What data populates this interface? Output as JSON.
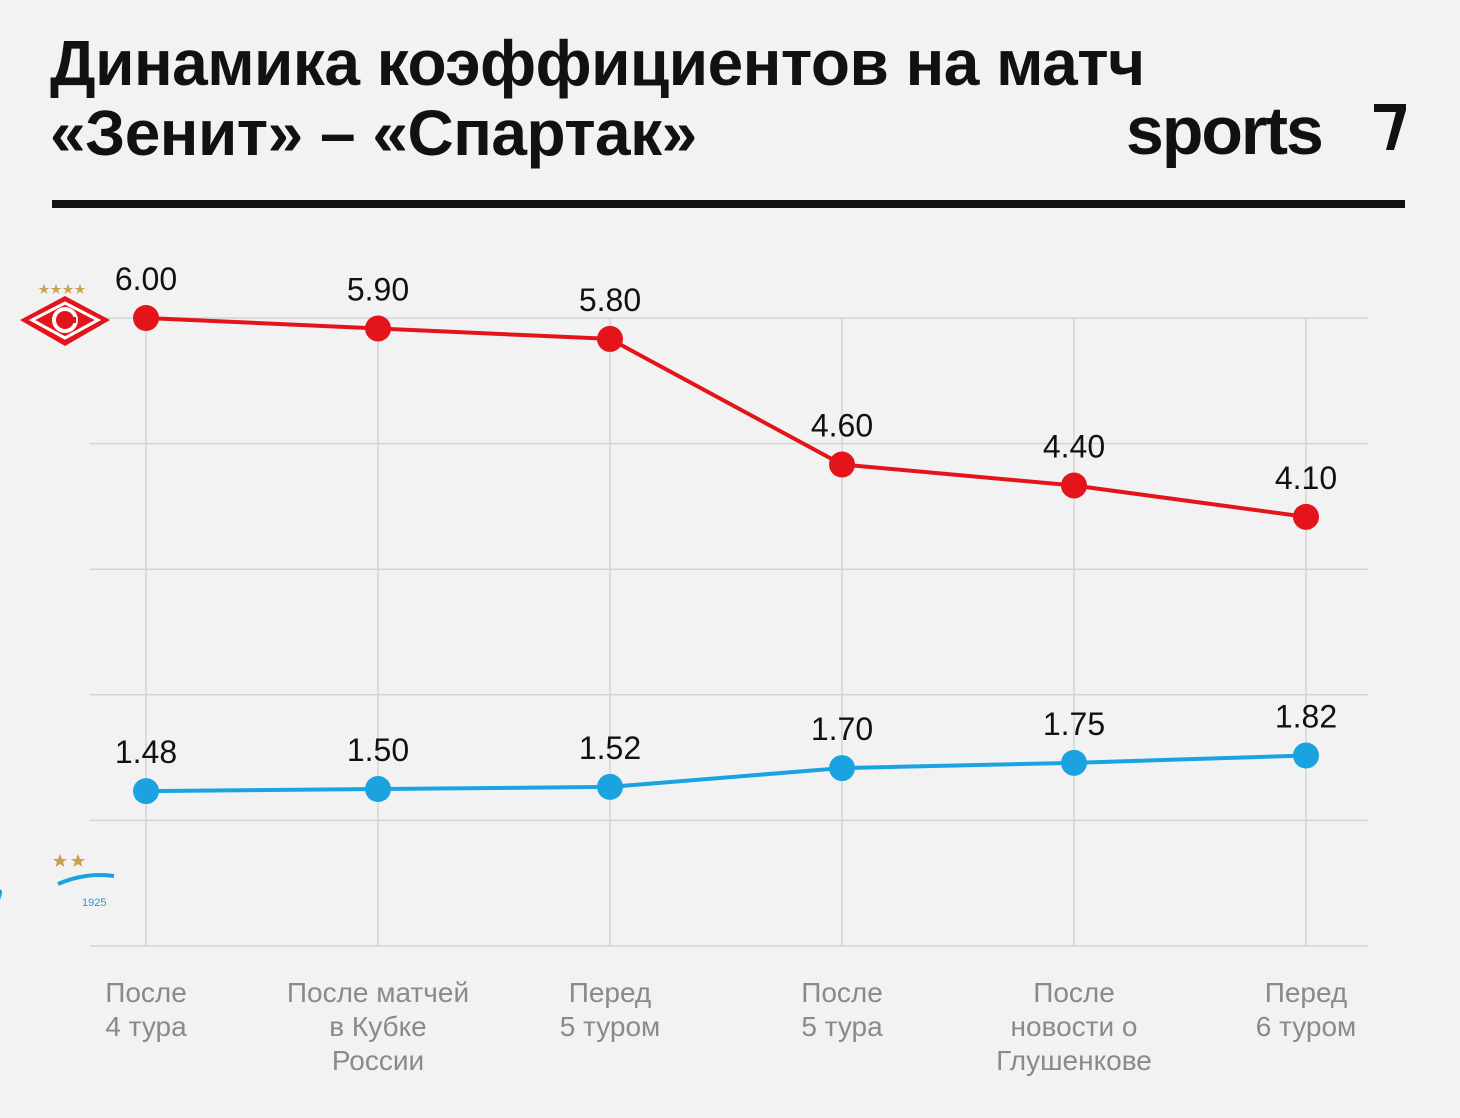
{
  "header": {
    "title_line1": "Динамика коэффициентов на матч",
    "title_line2": "«Зенит» – «Спартак»",
    "brand": "sports"
  },
  "colors": {
    "spartak": "#e3151b",
    "zenit": "#1aa3e0",
    "grid": "#d4d4d4"
  },
  "icons": {
    "spartak": "spartak-logo-icon",
    "zenit": "zenit-logo-icon"
  },
  "chart_data": {
    "type": "line",
    "categories": [
      "После\n4 тура",
      "После матчей\nв Кубке\nРоссии",
      "Перед\n5 туром",
      "После\n5 тура",
      "После\nновости о\nГлушенкове",
      "Перед\n6 туром"
    ],
    "series": [
      {
        "team": "spartak",
        "values": [
          6.0,
          5.9,
          5.8,
          4.6,
          4.4,
          4.1
        ],
        "labels": [
          "6.00",
          "5.90",
          "5.80",
          "4.60",
          "4.40",
          "4.10"
        ]
      },
      {
        "team": "zenit",
        "values": [
          1.48,
          1.5,
          1.52,
          1.7,
          1.75,
          1.82
        ],
        "labels": [
          "1.48",
          "1.50",
          "1.52",
          "1.70",
          "1.75",
          "1.82"
        ]
      }
    ],
    "ylim": [
      0,
      6
    ],
    "grid": true,
    "y_axis_labels": false
  }
}
